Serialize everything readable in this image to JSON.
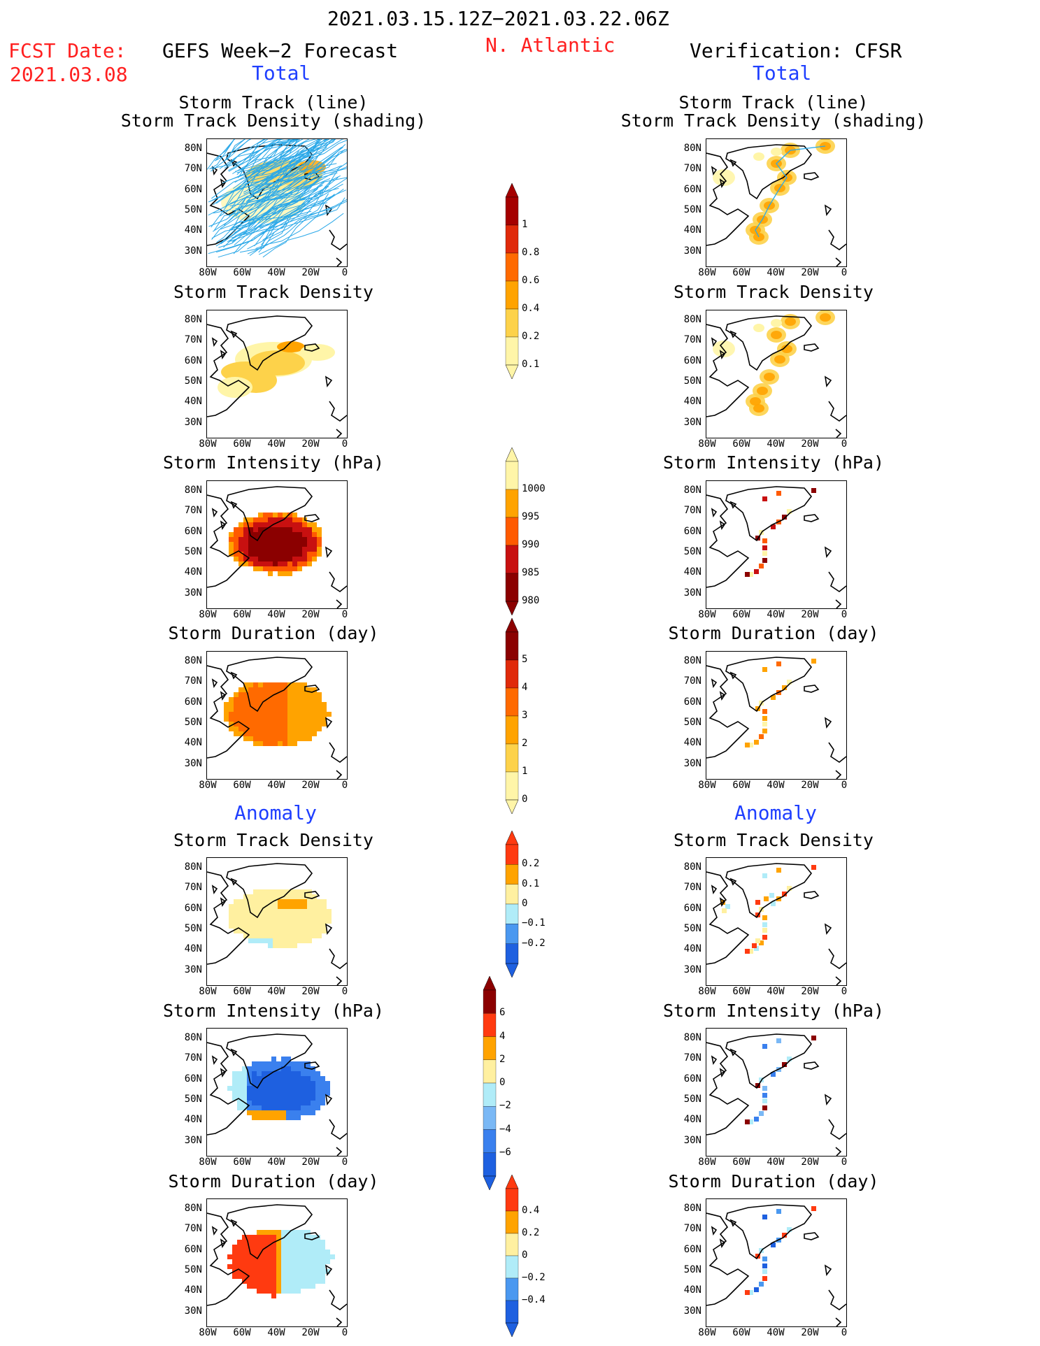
{
  "header": {
    "date_range": "2021.03.15.12Z−2021.03.22.06Z",
    "fcst_label": "FCST Date:",
    "fcst_date": "2021.03.08",
    "left_title": "GEFS Week−2 Forecast",
    "region": "N. Atlantic",
    "right_title": "Verification: CFSR",
    "total_label": "Total",
    "anomaly_label": "Anomaly"
  },
  "axes": {
    "y_ticks": [
      "80N",
      "70N",
      "60N",
      "50N",
      "40N",
      "30N"
    ],
    "x_ticks": [
      "80W",
      "60W",
      "40W",
      "20W",
      "0"
    ]
  },
  "panel_titles": {
    "storm_track_line": "Storm Track (line)",
    "storm_track_density_shading": "Storm Track Density (shading)",
    "storm_track_density": "Storm Track Density",
    "storm_intensity": "Storm Intensity (hPa)",
    "storm_duration": "Storm Duration (day)"
  },
  "colors": {
    "frame": "#000000",
    "track_line": "#2aa8e8",
    "title_red": "#ff2020",
    "title_blue": "#1f3fff"
  },
  "chart_data": [
    {
      "type": "heatmap",
      "id": "density_colorbar",
      "levels": [
        "1",
        "0.8",
        "0.6",
        "0.4",
        "0.2",
        "0.1"
      ],
      "colors": [
        "#a50000",
        "#e02a0a",
        "#ff6a00",
        "#ffa300",
        "#fdd24a",
        "#fff5a8"
      ]
    },
    {
      "type": "heatmap",
      "id": "intensity_colorbar",
      "levels": [
        "1000",
        "995",
        "990",
        "985",
        "980"
      ],
      "colors": [
        "#fff5a8",
        "#ffa300",
        "#ff5a00",
        "#c81010",
        "#8b0000"
      ]
    },
    {
      "type": "heatmap",
      "id": "duration_colorbar",
      "levels": [
        "5",
        "4",
        "3",
        "2",
        "1",
        "0"
      ],
      "colors": [
        "#8b0000",
        "#e02a0a",
        "#ff6a00",
        "#ffa300",
        "#fdd24a",
        "#fff5a8"
      ]
    },
    {
      "type": "heatmap",
      "id": "density_anomaly_colorbar",
      "levels": [
        "0.2",
        "0.1",
        "0",
        "−0.1",
        "−0.2"
      ],
      "colors": [
        "#ff3a10",
        "#ffa300",
        "#fff0a0",
        "#b0ecf8",
        "#4a98f0",
        "#1e60e0"
      ]
    },
    {
      "type": "heatmap",
      "id": "intensity_anomaly_colorbar",
      "levels": [
        "6",
        "4",
        "2",
        "0",
        "−2",
        "−4",
        "−6"
      ],
      "colors": [
        "#8b0000",
        "#ff3a10",
        "#ffa300",
        "#fff0a0",
        "#b0ecf8",
        "#7ab8f5",
        "#3a80ee",
        "#1e60e0"
      ]
    },
    {
      "type": "heatmap",
      "id": "duration_anomaly_colorbar",
      "levels": [
        "0.4",
        "0.2",
        "0",
        "−0.2",
        "−0.4"
      ],
      "colors": [
        "#ff3a10",
        "#ffa300",
        "#fff0a0",
        "#b0ecf8",
        "#4a98f0",
        "#1e60e0"
      ]
    }
  ]
}
